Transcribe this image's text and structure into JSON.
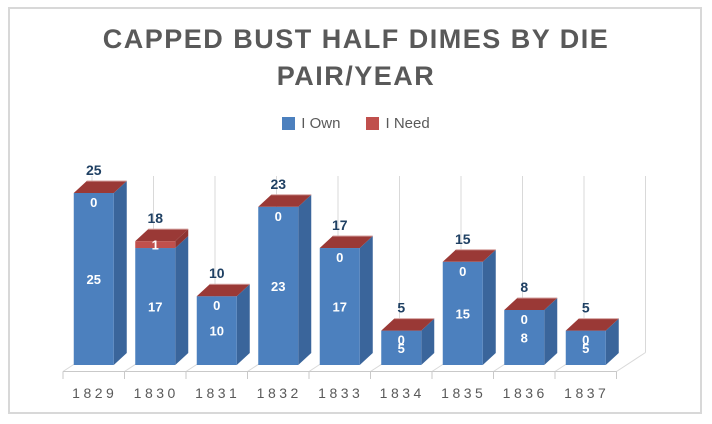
{
  "window": {
    "background": "#ffffff",
    "border_color": "#D8D8D8"
  },
  "chart_data": {
    "type": "bar",
    "variant": "3d-stacked-column",
    "title": "CAPPED BUST HALF DIMES BY DIE PAIR/YEAR",
    "title_lines": [
      "CAPPED BUST HALF DIMES BY DIE",
      "PAIR/YEAR"
    ],
    "categories": [
      "1829",
      "1830",
      "1831",
      "1832",
      "1833",
      "1834",
      "1835",
      "1836",
      "1837"
    ],
    "series": [
      {
        "name": "I Own",
        "color": "#4C80BE",
        "side_color": "#3A659B",
        "values": [
          25,
          17,
          10,
          23,
          17,
          5,
          15,
          8,
          5
        ]
      },
      {
        "name": "I Need",
        "color": "#C0504D",
        "side_color": "#8E3431",
        "top_color": "#9A3936",
        "values": [
          0,
          1,
          0,
          0,
          0,
          0,
          0,
          0,
          0
        ]
      }
    ],
    "totals": [
      25,
      18,
      10,
      23,
      17,
      5,
      15,
      8,
      5
    ],
    "ylim": [
      0,
      25
    ],
    "xlabel": "",
    "ylabel": "",
    "legend_position": "top-center",
    "grid": "vertical back-wall gridlines at category boundaries",
    "value_labels": "segment values in white inside bars; totals in dark blue above bars"
  },
  "colors": {
    "title_text": "#595959",
    "legend_text": "#595959",
    "category_text": "#595959",
    "total_label_text": "#1F4063",
    "inside_label_text": "#FFFFFF",
    "gridline": "#D9D9D9",
    "axis_line": "#C9C9C9",
    "cap_highlight": "#D5A3A1"
  }
}
